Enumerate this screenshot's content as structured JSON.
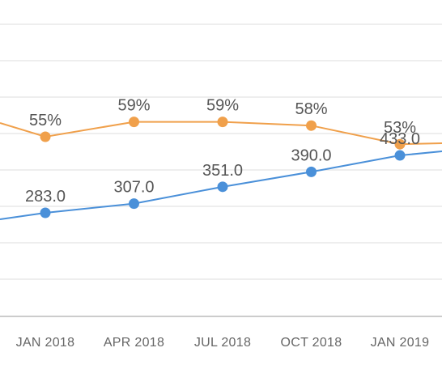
{
  "chart_data": {
    "type": "line",
    "categories": [
      "JAN 2018",
      "APR 2018",
      "JUL 2018",
      "OCT 2018",
      "JAN 2019"
    ],
    "series": [
      {
        "values": [
          55,
          59,
          59,
          58,
          53
        ],
        "labels": [
          "55%",
          "59%",
          "59%",
          "58%",
          "53%"
        ],
        "color": "#f0a04b"
      },
      {
        "values": [
          283.0,
          307.0,
          351.0,
          390.0,
          433.0
        ],
        "labels": [
          "283.0",
          "307.0",
          "351.0",
          "390.0",
          "433.0"
        ],
        "color": "#4a90d9"
      }
    ],
    "grid": true,
    "legend": "none",
    "gridline_color": "#e3e3e3",
    "axis_color": "#bbbbbb"
  }
}
